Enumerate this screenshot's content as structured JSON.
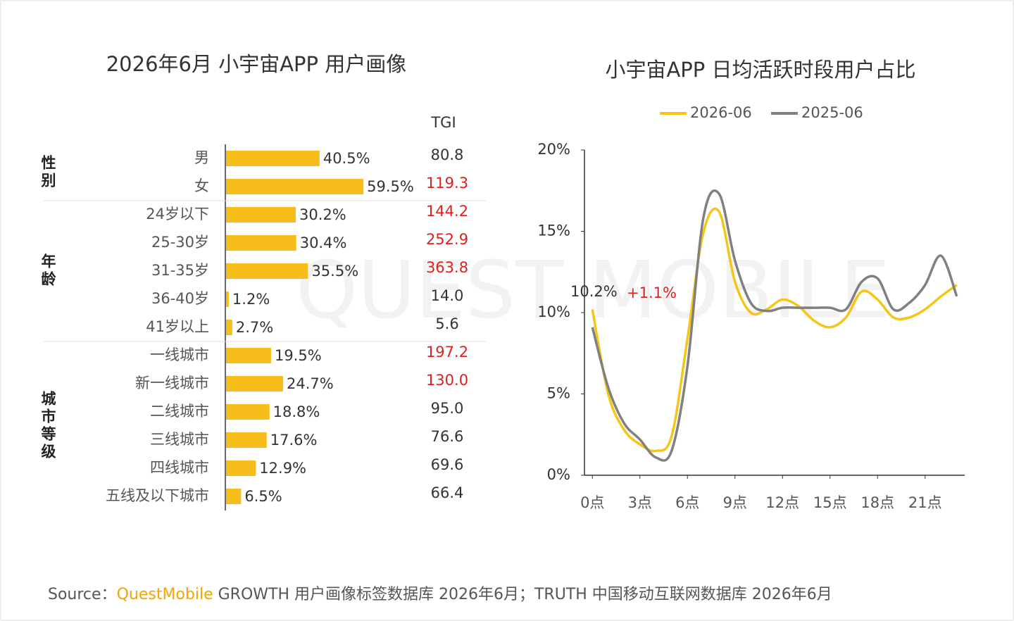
{
  "watermark": "QUEST MOBILE",
  "source": {
    "prefix": "Source：",
    "brand": "QuestMobile",
    "text": " GROWTH 用户画像标签数据库 2026年6月；TRUTH 中国移动互联网数据库 2026年6月"
  },
  "chart_data": [
    {
      "type": "bar",
      "title": "2026年6月 小宇宙APP 用户画像",
      "tgi_header": "TGI",
      "color": "#f7bd1a",
      "groups": [
        {
          "name": "性别",
          "categories": [
            "男",
            "女"
          ],
          "values": [
            40.5,
            59.5
          ],
          "value_labels": [
            "40.5%",
            "59.5%"
          ],
          "tgi": [
            "80.8",
            "119.3"
          ],
          "tgi_colors": [
            "#333333",
            "#e02020"
          ]
        },
        {
          "name": "年龄",
          "categories": [
            "24岁以下",
            "25-30岁",
            "31-35岁",
            "36-40岁",
            "41岁以上"
          ],
          "values": [
            30.2,
            30.4,
            35.5,
            1.2,
            2.7
          ],
          "value_labels": [
            "30.2%",
            "30.4%",
            "35.5%",
            "1.2%",
            "2.7%"
          ],
          "tgi": [
            "144.2",
            "252.9",
            "363.8",
            "14.0",
            "5.6"
          ],
          "tgi_colors": [
            "#e02020",
            "#e02020",
            "#e02020",
            "#333333",
            "#333333"
          ]
        },
        {
          "name": "城市等级",
          "categories": [
            "一线城市",
            "新一线城市",
            "二线城市",
            "三线城市",
            "四线城市",
            "五线及以下城市"
          ],
          "values": [
            19.5,
            24.7,
            18.8,
            17.6,
            12.9,
            6.5
          ],
          "value_labels": [
            "19.5%",
            "24.7%",
            "18.8%",
            "17.6%",
            "12.9%",
            "6.5%"
          ],
          "tgi": [
            "197.2",
            "130.0",
            "95.0",
            "76.6",
            "69.6",
            "66.4"
          ],
          "tgi_colors": [
            "#e02020",
            "#e02020",
            "#333333",
            "#333333",
            "#333333",
            "#333333"
          ]
        }
      ]
    },
    {
      "type": "line",
      "title": "小宇宙APP 日均活跃时段用户占比",
      "x": [
        0,
        1,
        2,
        3,
        4,
        5,
        6,
        7,
        8,
        9,
        10,
        11,
        12,
        13,
        14,
        15,
        16,
        17,
        18,
        19,
        20,
        21,
        22,
        23
      ],
      "xlim": [
        -0.5,
        23.5
      ],
      "xticks": [
        {
          "value": 0,
          "label": "0点"
        },
        {
          "value": 3,
          "label": "3点"
        },
        {
          "value": 6,
          "label": "6点"
        },
        {
          "value": 9,
          "label": "9点"
        },
        {
          "value": 12,
          "label": "12点"
        },
        {
          "value": 15,
          "label": "15点"
        },
        {
          "value": 18,
          "label": "18点"
        },
        {
          "value": 21,
          "label": "21点"
        }
      ],
      "ylim": [
        0,
        20
      ],
      "yticks": [
        {
          "value": 0,
          "label": "0%"
        },
        {
          "value": 5,
          "label": "5%"
        },
        {
          "value": 10,
          "label": "10%"
        },
        {
          "value": 15,
          "label": "15%"
        },
        {
          "value": 20,
          "label": "20%"
        }
      ],
      "series": [
        {
          "name": "2026-06",
          "color": "#f5c518",
          "values": [
            10.2,
            5.0,
            2.8,
            1.9,
            1.5,
            2.4,
            8.4,
            14.9,
            16.2,
            11.9,
            10.0,
            10.2,
            10.8,
            10.4,
            9.5,
            9.1,
            9.7,
            11.3,
            10.8,
            9.7,
            9.7,
            10.2,
            11.0,
            11.7
          ]
        },
        {
          "name": "2025-06",
          "color": "#808080",
          "values": [
            9.1,
            5.4,
            3.2,
            2.2,
            1.1,
            1.5,
            6.7,
            15.8,
            17.3,
            13.2,
            10.6,
            10.1,
            10.3,
            10.3,
            10.3,
            10.3,
            10.2,
            11.9,
            12.1,
            10.2,
            10.6,
            11.7,
            13.5,
            11.0
          ]
        }
      ],
      "annotations": [
        {
          "text": "10.2%",
          "color": "#333333"
        },
        {
          "text": "+1.1%",
          "color": "#e02020"
        }
      ]
    }
  ]
}
